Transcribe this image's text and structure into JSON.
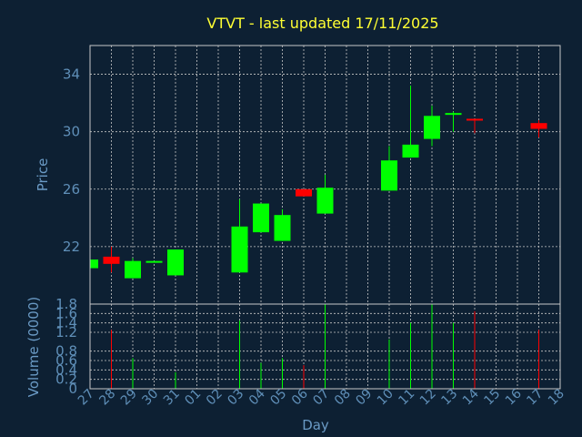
{
  "chart_data": {
    "type": "candlestick",
    "title": "VTVT - last updated 17/11/2025",
    "xlabel": "Day",
    "price_panel": {
      "ylabel": "Price",
      "ylim": [
        18.0,
        36.0
      ],
      "yticks": [
        22,
        26,
        30,
        34
      ],
      "grid": true
    },
    "volume_panel": {
      "ylabel": "Volume (0000)",
      "ylim": [
        0,
        1.8
      ],
      "yticks": [
        0,
        0.2,
        0.4,
        0.6,
        0.8,
        1.2,
        1.4,
        1.6,
        1.8
      ],
      "ytick_labels": [
        "0",
        "0.2",
        "0.4",
        "0.6",
        "0.8",
        "1.2",
        "1.4",
        "1.6",
        "1.8"
      ],
      "grid": true
    },
    "x_tick_labels": [
      "27",
      "28",
      "29",
      "30",
      "31",
      "01",
      "02",
      "03",
      "04",
      "05",
      "06",
      "07",
      "08",
      "09",
      "10",
      "11",
      "12",
      "13",
      "14",
      "15",
      "16",
      "17",
      "18"
    ],
    "colors": {
      "up": "#00ff00",
      "down": "#ff0000",
      "grid": "#c8c8c8",
      "frame": "#c8c8c8",
      "background": "#0d2033",
      "title": "#ffff33",
      "axis_text": "#5f8fb8"
    },
    "candles": [
      {
        "day": "27",
        "open": 20.5,
        "high": 21.2,
        "low": 20.5,
        "close": 21.1,
        "volume": 0.0
      },
      {
        "day": "28",
        "open": 21.3,
        "high": 22.0,
        "low": 20.2,
        "close": 20.8,
        "volume": 1.25
      },
      {
        "day": "29",
        "open": 19.8,
        "high": 21.2,
        "low": 19.8,
        "close": 21.0,
        "volume": 0.65
      },
      {
        "day": "30",
        "open": 20.9,
        "high": 21.0,
        "low": 20.9,
        "close": 21.0,
        "volume": 0.0
      },
      {
        "day": "31",
        "open": 20.0,
        "high": 21.8,
        "low": 20.0,
        "close": 21.8,
        "volume": 0.35
      },
      {
        "day": "03",
        "open": 20.2,
        "high": 25.3,
        "low": 20.2,
        "close": 23.4,
        "volume": 1.45
      },
      {
        "day": "04",
        "open": 23.0,
        "high": 25.0,
        "low": 23.0,
        "close": 25.0,
        "volume": 0.55
      },
      {
        "day": "05",
        "open": 22.4,
        "high": 24.6,
        "low": 22.4,
        "close": 24.2,
        "volume": 0.65
      },
      {
        "day": "06",
        "open": 26.0,
        "high": 26.0,
        "low": 25.5,
        "close": 25.5,
        "volume": 0.5
      },
      {
        "day": "07",
        "open": 24.3,
        "high": 27.0,
        "low": 24.3,
        "close": 26.1,
        "volume": 1.8
      },
      {
        "day": "10",
        "open": 25.9,
        "high": 29.0,
        "low": 25.9,
        "close": 28.0,
        "volume": 1.05
      },
      {
        "day": "11",
        "open": 28.2,
        "high": 33.2,
        "low": 28.2,
        "close": 29.1,
        "volume": 1.4
      },
      {
        "day": "12",
        "open": 29.5,
        "high": 31.8,
        "low": 29.0,
        "close": 31.1,
        "volume": 1.85
      },
      {
        "day": "13",
        "open": 31.3,
        "high": 31.4,
        "low": 30.0,
        "close": 31.3,
        "volume": 1.4
      },
      {
        "day": "14",
        "open": 30.9,
        "high": 30.9,
        "low": 29.9,
        "close": 30.8,
        "volume": 1.65
      },
      {
        "day": "17",
        "open": 30.6,
        "high": 30.8,
        "low": 29.6,
        "close": 30.2,
        "volume": 1.25
      }
    ]
  }
}
